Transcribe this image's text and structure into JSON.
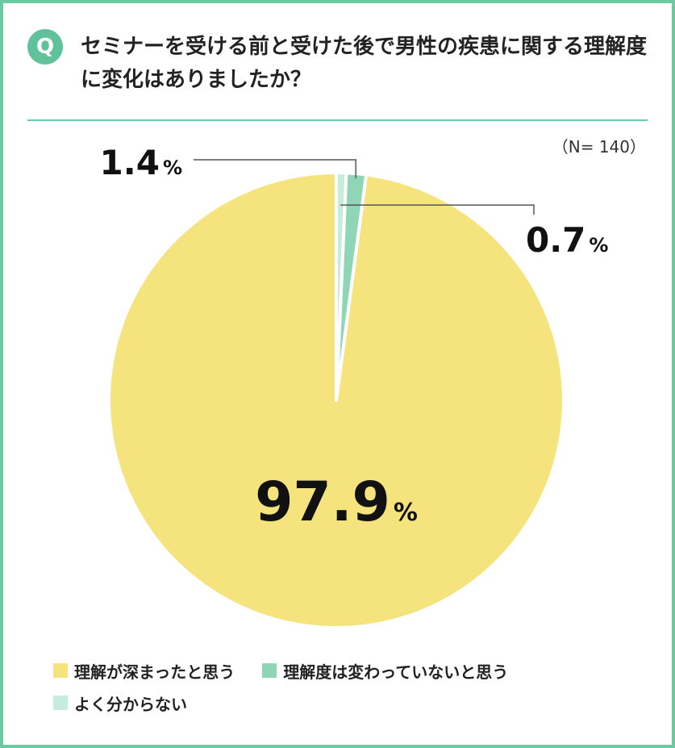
{
  "question": {
    "badge": "Q",
    "text": "セミナーを受ける前と受けた後で男性の疾患に関する理解度に変化はありましたか？"
  },
  "sample_size": "（N= 140）",
  "chart_data": {
    "type": "pie",
    "title": "",
    "slices": [
      {
        "name": "理解が深まったと思う",
        "value": 97.9,
        "label": "97.9",
        "unit": "%",
        "color": "#f5e47e"
      },
      {
        "name": "理解度は変わっていないと思う",
        "value": 1.4,
        "label": "1.4",
        "unit": "%",
        "color": "#8fd6b7"
      },
      {
        "name": "よく分からない",
        "value": 0.7,
        "label": "0.7",
        "unit": "%",
        "color": "#c6ecdc"
      }
    ],
    "legend_position": "bottom-left"
  }
}
